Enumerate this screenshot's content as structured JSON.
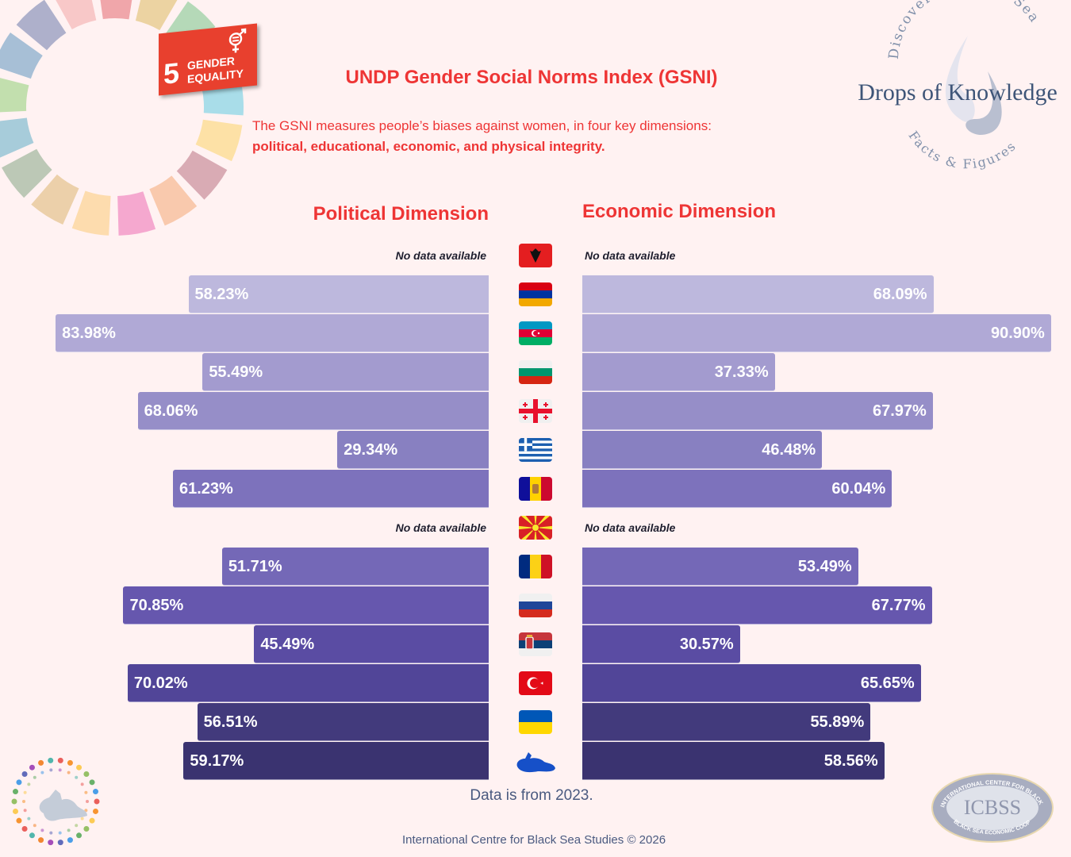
{
  "header": {
    "title": "UNDP Gender Social Norms Index (GSNI)",
    "subtitle_line1": "The GSNI measures people’s biases against women, in four key dimensions:",
    "subtitle_line2": "political, educational, economic, and physical integrity."
  },
  "sdg_badge": {
    "number": "5",
    "line1": "GENDER",
    "line2": "EQUALITY",
    "color": "#e8402e"
  },
  "logo_drops": {
    "arc_top": "Discovering Black Sea",
    "name": "Drops of Knowledge",
    "arc_bottom": "Facts & Figures"
  },
  "logo_icbss": {
    "name": "ICBSS",
    "arc_top": "INTERNATIONAL CENTER FOR BLACK SEA STUDIES",
    "arc_bottom": "BLACK SEA ECONOMIC COOPERATION"
  },
  "no_data_label": "No data available",
  "note": "Data is from 2023.",
  "footer": "International Centre for Black Sea Studies © 2026",
  "chart_data": {
    "type": "bar",
    "title": "UNDP Gender Social Norms Index (GSNI)",
    "orientation": "horizontal-diverging",
    "unit": "%",
    "categories": [
      "Albania",
      "Armenia",
      "Azerbaijan",
      "Bulgaria",
      "Georgia",
      "Greece",
      "Moldova",
      "North Macedonia",
      "Romania",
      "Russia",
      "Serbia",
      "Türkiye",
      "Ukraine",
      "Black Sea region"
    ],
    "flags": [
      "albania-flag-icon",
      "armenia-flag-icon",
      "azerbaijan-flag-icon",
      "bulgaria-flag-icon",
      "georgia-flag-icon",
      "greece-flag-icon",
      "moldova-flag-icon",
      "north-macedonia-flag-icon",
      "romania-flag-icon",
      "russia-flag-icon",
      "serbia-flag-icon",
      "turkey-flag-icon",
      "ukraine-flag-icon",
      "black-sea-region-icon"
    ],
    "series": [
      {
        "name": "Political Dimension",
        "direction": "left",
        "values": [
          null,
          58.23,
          83.98,
          55.49,
          68.06,
          29.34,
          61.23,
          null,
          51.71,
          70.85,
          45.49,
          70.02,
          56.51,
          59.17
        ],
        "labels": [
          "No data available",
          "58.23%",
          "83.98%",
          "55.49%",
          "68.06%",
          "29.34%",
          "61.23%",
          "No data available",
          "51.71%",
          "70.85%",
          "45.49%",
          "70.02%",
          "56.51%",
          "59.17%"
        ]
      },
      {
        "name": "Economic Dimension",
        "direction": "right",
        "values": [
          null,
          68.09,
          90.9,
          37.33,
          67.97,
          46.48,
          60.04,
          null,
          53.49,
          67.77,
          30.57,
          65.65,
          55.89,
          58.56
        ],
        "labels": [
          "No data available",
          "68.09%",
          "90.90%",
          "37.33%",
          "67.97%",
          "46.48%",
          "60.04%",
          "No data available",
          "53.49%",
          "67.77%",
          "30.57%",
          "65.65%",
          "55.89%",
          "58.56%"
        ]
      }
    ],
    "row_colors": [
      "#bdb8dd",
      "#bdb8dd",
      "#b0a9d6",
      "#a39bcf",
      "#968ec8",
      "#8880c1",
      "#7d72bc",
      "#7468b7",
      "#7468b7",
      "#6657ae",
      "#5a4ca3",
      "#514598",
      "#423a7c",
      "#3a3370"
    ],
    "xlim": [
      0,
      100
    ]
  }
}
